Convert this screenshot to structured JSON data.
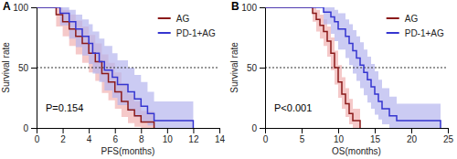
{
  "chart_data": [
    {
      "type": "step",
      "title": "A",
      "x_label": "PFS(months)",
      "y_label": "Survival rate",
      "annotations": [
        "P=0.154"
      ],
      "xlim": [
        0,
        14
      ],
      "xticks": [
        0,
        2,
        4,
        6,
        8,
        10,
        12,
        14
      ],
      "ylim": [
        0,
        100
      ],
      "yticks": [
        0,
        50,
        100
      ],
      "hline": 50,
      "legend": "top-right",
      "series": [
        {
          "name": "AG",
          "color": "#8b1a1a",
          "x": [
            0,
            1.5,
            2,
            2.5,
            3,
            3.5,
            4,
            4.5,
            5,
            5.5,
            6,
            6.5,
            7,
            7.5,
            8,
            9
          ],
          "values": [
            100,
            94,
            88,
            82,
            76,
            70,
            62,
            55,
            45,
            38,
            30,
            22,
            15,
            10,
            5,
            0
          ],
          "lower": [
            100,
            84,
            76,
            68,
            61,
            54,
            46,
            39,
            29,
            23,
            16,
            9,
            4,
            1,
            0,
            0
          ],
          "upper": [
            100,
            100,
            98,
            94,
            89,
            84,
            77,
            70,
            61,
            54,
            46,
            37,
            28,
            22,
            14,
            0
          ]
        },
        {
          "name": "PD-1+AG",
          "color": "#3535d0",
          "x": [
            0,
            1.8,
            2.5,
            3,
            3.5,
            4,
            4.3,
            4.8,
            5.2,
            5.8,
            6.2,
            7,
            7.5,
            8,
            8.5,
            9,
            12
          ],
          "values": [
            100,
            95,
            88,
            82,
            76,
            70,
            62,
            55,
            48,
            42,
            36,
            30,
            24,
            18,
            12,
            6,
            0
          ],
          "lower": [
            100,
            85,
            74,
            67,
            60,
            53,
            45,
            38,
            31,
            25,
            19,
            14,
            9,
            5,
            2,
            0,
            0
          ],
          "upper": [
            100,
            100,
            98,
            94,
            90,
            86,
            80,
            74,
            68,
            62,
            56,
            50,
            44,
            38,
            30,
            22,
            0
          ]
        }
      ]
    },
    {
      "type": "step",
      "title": "B",
      "x_label": "OS(months)",
      "y_label": "Survival rate",
      "annotations": [
        "P<0.001"
      ],
      "xlim": [
        0,
        25
      ],
      "xticks": [
        0,
        5,
        10,
        15,
        20,
        25
      ],
      "ylim": [
        0,
        100
      ],
      "yticks": [
        0,
        50,
        100
      ],
      "hline": 50,
      "legend": "top-right",
      "series": [
        {
          "name": "AG",
          "color": "#8b1a1a",
          "x": [
            0,
            6.5,
            7,
            7.5,
            8,
            8.5,
            9,
            9.5,
            10,
            10.5,
            11,
            11.5,
            12,
            13
          ],
          "values": [
            100,
            95,
            90,
            85,
            80,
            72,
            62,
            50,
            38,
            28,
            20,
            12,
            6,
            0
          ],
          "lower": [
            100,
            88,
            80,
            74,
            68,
            59,
            48,
            36,
            25,
            16,
            9,
            3,
            0,
            0
          ],
          "upper": [
            100,
            100,
            98,
            94,
            90,
            84,
            75,
            64,
            52,
            42,
            33,
            24,
            16,
            0
          ]
        },
        {
          "name": "PD-1+AG",
          "color": "#3535d0",
          "x": [
            0,
            8,
            9,
            9.5,
            10,
            11,
            11.5,
            12,
            12.5,
            13,
            13.5,
            14,
            14.5,
            15,
            15.5,
            16,
            17,
            18,
            24
          ],
          "values": [
            100,
            96,
            92,
            88,
            82,
            76,
            70,
            64,
            58,
            52,
            46,
            40,
            34,
            28,
            22,
            16,
            10,
            6,
            0
          ],
          "lower": [
            100,
            86,
            78,
            72,
            65,
            58,
            52,
            45,
            39,
            33,
            27,
            21,
            16,
            11,
            7,
            3,
            0,
            0,
            0
          ],
          "upper": [
            100,
            100,
            100,
            98,
            95,
            90,
            86,
            81,
            76,
            71,
            65,
            59,
            53,
            47,
            40,
            33,
            26,
            20,
            0
          ]
        }
      ]
    }
  ]
}
